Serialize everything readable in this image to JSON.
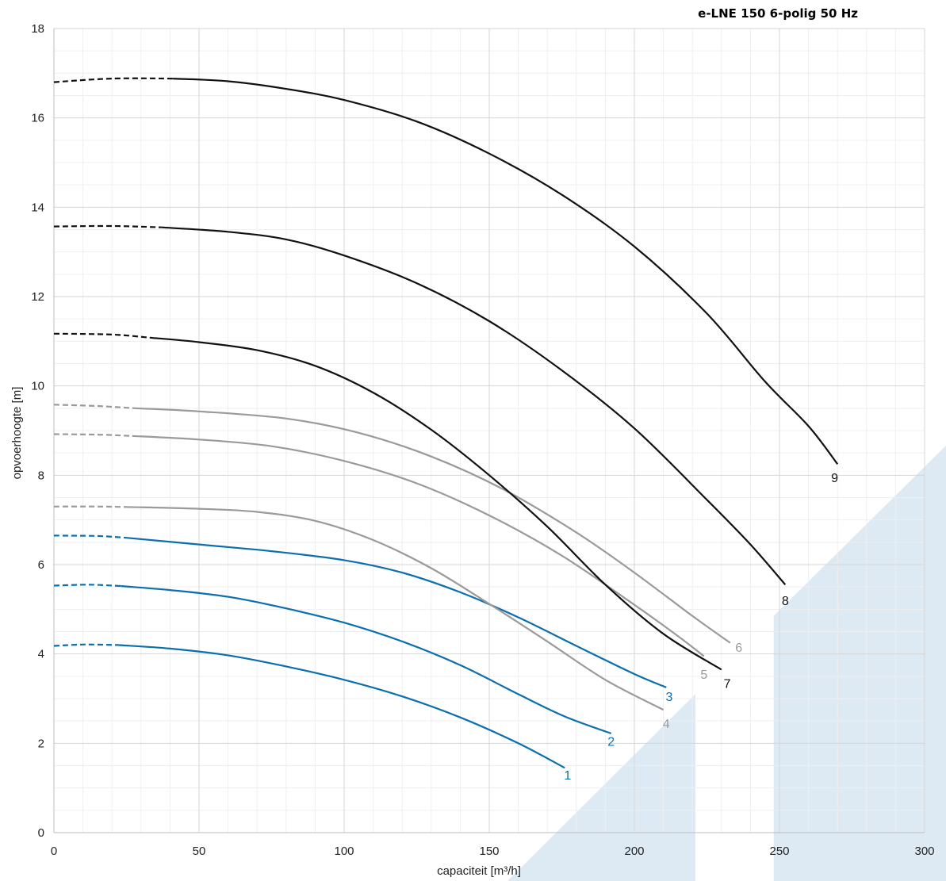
{
  "chart_data": {
    "type": "line",
    "title": "e-LNE 150 6-polig 50 Hz",
    "xlabel": "capaciteit [m³/h]",
    "ylabel": "opvoerhoogte [m]",
    "xlim": [
      0,
      300
    ],
    "ylim": [
      0,
      18
    ],
    "x_ticks": [
      "0",
      "50",
      "100",
      "150",
      "200",
      "250",
      "300"
    ],
    "y_ticks": [
      "0",
      "2",
      "4",
      "6",
      "8",
      "10",
      "12",
      "14",
      "16",
      "18"
    ],
    "grid": true,
    "colors": {
      "blue": "#0b6fae",
      "gray": "#9a9a9a",
      "black": "#111111",
      "area": "#dde9f3"
    },
    "series": [
      {
        "name": "1",
        "color": "blue",
        "dashed_until": 22,
        "points": [
          [
            0,
            4.18
          ],
          [
            10,
            4.21
          ],
          [
            22,
            4.2
          ],
          [
            40,
            4.12
          ],
          [
            60,
            3.97
          ],
          [
            80,
            3.72
          ],
          [
            100,
            3.42
          ],
          [
            120,
            3.05
          ],
          [
            140,
            2.58
          ],
          [
            160,
            2.0
          ],
          [
            176,
            1.45
          ]
        ],
        "label_at": [
          177,
          1.3
        ]
      },
      {
        "name": "2",
        "color": "blue",
        "dashed_until": 23,
        "points": [
          [
            0,
            5.53
          ],
          [
            12,
            5.55
          ],
          [
            23,
            5.52
          ],
          [
            40,
            5.43
          ],
          [
            60,
            5.28
          ],
          [
            80,
            5.02
          ],
          [
            100,
            4.7
          ],
          [
            120,
            4.28
          ],
          [
            140,
            3.75
          ],
          [
            160,
            3.1
          ],
          [
            176,
            2.6
          ],
          [
            192,
            2.22
          ]
        ],
        "label_at": [
          192,
          2.05
        ]
      },
      {
        "name": "3",
        "color": "blue",
        "dashed_until": 25,
        "points": [
          [
            0,
            6.65
          ],
          [
            15,
            6.64
          ],
          [
            25,
            6.6
          ],
          [
            50,
            6.45
          ],
          [
            75,
            6.3
          ],
          [
            100,
            6.1
          ],
          [
            120,
            5.82
          ],
          [
            140,
            5.38
          ],
          [
            160,
            4.82
          ],
          [
            180,
            4.18
          ],
          [
            200,
            3.55
          ],
          [
            211,
            3.25
          ]
        ],
        "label_at": [
          212,
          3.05
        ]
      },
      {
        "name": "4",
        "color": "gray",
        "dashed_until": 25,
        "points": [
          [
            0,
            7.3
          ],
          [
            15,
            7.3
          ],
          [
            25,
            7.29
          ],
          [
            50,
            7.25
          ],
          [
            70,
            7.18
          ],
          [
            90,
            6.98
          ],
          [
            110,
            6.55
          ],
          [
            130,
            5.92
          ],
          [
            150,
            5.12
          ],
          [
            170,
            4.28
          ],
          [
            190,
            3.42
          ],
          [
            210,
            2.75
          ]
        ],
        "label_at": [
          211,
          2.45
        ]
      },
      {
        "name": "5",
        "color": "gray",
        "dashed_until": 27,
        "points": [
          [
            0,
            8.92
          ],
          [
            15,
            8.91
          ],
          [
            27,
            8.88
          ],
          [
            50,
            8.8
          ],
          [
            75,
            8.65
          ],
          [
            100,
            8.32
          ],
          [
            125,
            7.82
          ],
          [
            150,
            7.1
          ],
          [
            175,
            6.2
          ],
          [
            200,
            5.1
          ],
          [
            215,
            4.4
          ],
          [
            224,
            3.95
          ]
        ],
        "label_at": [
          224,
          3.55
        ]
      },
      {
        "name": "6",
        "color": "gray",
        "dashed_until": 28,
        "points": [
          [
            0,
            9.58
          ],
          [
            15,
            9.55
          ],
          [
            28,
            9.5
          ],
          [
            50,
            9.43
          ],
          [
            80,
            9.27
          ],
          [
            105,
            8.95
          ],
          [
            130,
            8.42
          ],
          [
            155,
            7.68
          ],
          [
            180,
            6.72
          ],
          [
            200,
            5.82
          ],
          [
            220,
            4.85
          ],
          [
            233,
            4.25
          ]
        ],
        "label_at": [
          236,
          4.15
        ]
      },
      {
        "name": "7",
        "color": "black",
        "dashed_until": 33,
        "points": [
          [
            0,
            11.17
          ],
          [
            20,
            11.15
          ],
          [
            33,
            11.08
          ],
          [
            50,
            10.98
          ],
          [
            70,
            10.8
          ],
          [
            90,
            10.45
          ],
          [
            110,
            9.85
          ],
          [
            130,
            9.02
          ],
          [
            150,
            8.0
          ],
          [
            170,
            6.85
          ],
          [
            190,
            5.55
          ],
          [
            210,
            4.45
          ],
          [
            230,
            3.65
          ]
        ],
        "label_at": [
          232,
          3.35
        ]
      },
      {
        "name": "8",
        "color": "black",
        "dashed_until": 37,
        "points": [
          [
            0,
            13.57
          ],
          [
            20,
            13.58
          ],
          [
            37,
            13.55
          ],
          [
            60,
            13.45
          ],
          [
            80,
            13.28
          ],
          [
            100,
            12.92
          ],
          [
            125,
            12.3
          ],
          [
            150,
            11.45
          ],
          [
            175,
            10.35
          ],
          [
            200,
            9.05
          ],
          [
            225,
            7.45
          ],
          [
            240,
            6.45
          ],
          [
            252,
            5.55
          ]
        ],
        "label_at": [
          252,
          5.2
        ]
      },
      {
        "name": "9",
        "color": "black",
        "dashed_until": 41,
        "points": [
          [
            0,
            16.8
          ],
          [
            20,
            16.88
          ],
          [
            41,
            16.88
          ],
          [
            60,
            16.82
          ],
          [
            80,
            16.65
          ],
          [
            100,
            16.4
          ],
          [
            125,
            15.92
          ],
          [
            150,
            15.2
          ],
          [
            175,
            14.28
          ],
          [
            200,
            13.12
          ],
          [
            225,
            11.62
          ],
          [
            245,
            10.1
          ],
          [
            260,
            9.1
          ],
          [
            270,
            8.25
          ]
        ],
        "label_at": [
          269,
          7.95
        ]
      }
    ]
  }
}
